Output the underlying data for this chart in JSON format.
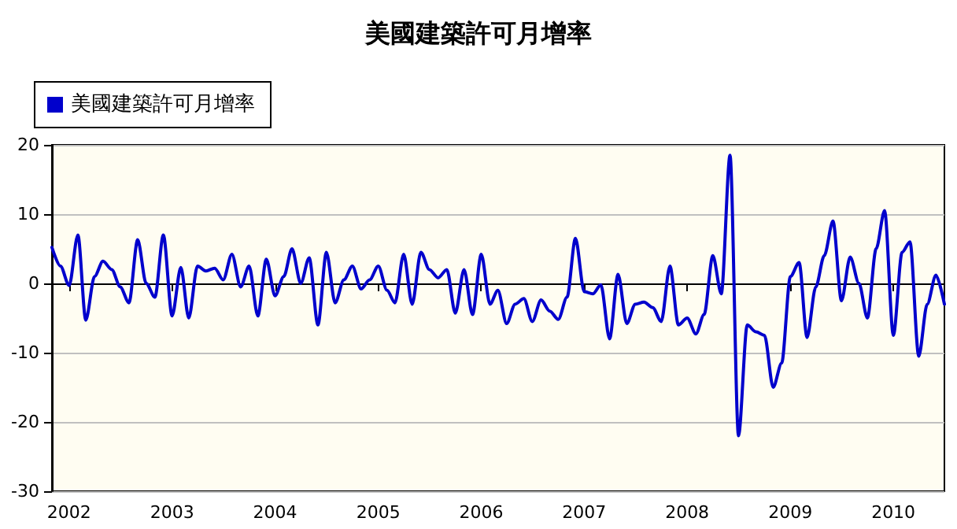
{
  "chart_data": {
    "type": "line",
    "title": "美國建築許可月增率",
    "x": [
      "2001-11",
      "2001-12",
      "2002-01",
      "2002-02",
      "2002-03",
      "2002-04",
      "2002-05",
      "2002-06",
      "2002-07",
      "2002-08",
      "2002-09",
      "2002-10",
      "2002-11",
      "2002-12",
      "2003-01",
      "2003-02",
      "2003-03",
      "2003-04",
      "2003-05",
      "2003-06",
      "2003-07",
      "2003-08",
      "2003-09",
      "2003-10",
      "2003-11",
      "2003-12",
      "2004-01",
      "2004-02",
      "2004-03",
      "2004-04",
      "2004-05",
      "2004-06",
      "2004-07",
      "2004-08",
      "2004-09",
      "2004-10",
      "2004-11",
      "2004-12",
      "2005-01",
      "2005-02",
      "2005-03",
      "2005-04",
      "2005-05",
      "2005-06",
      "2005-07",
      "2005-08",
      "2005-09",
      "2005-10",
      "2005-11",
      "2005-12",
      "2006-01",
      "2006-02",
      "2006-03",
      "2006-04",
      "2006-05",
      "2006-06",
      "2006-07",
      "2006-08",
      "2006-09",
      "2006-10",
      "2006-11",
      "2006-12",
      "2007-01",
      "2007-02",
      "2007-03",
      "2007-04",
      "2007-05",
      "2007-06",
      "2007-07",
      "2007-08",
      "2007-09",
      "2007-10",
      "2007-11",
      "2007-12",
      "2008-01",
      "2008-02",
      "2008-03",
      "2008-04",
      "2008-05",
      "2008-06",
      "2008-07",
      "2008-08",
      "2008-09",
      "2008-10",
      "2008-11",
      "2008-12",
      "2009-01",
      "2009-02",
      "2009-03",
      "2009-04",
      "2009-05",
      "2009-06",
      "2009-07",
      "2009-08",
      "2009-09",
      "2009-10",
      "2009-11",
      "2009-12",
      "2010-01",
      "2010-02",
      "2010-03",
      "2010-04",
      "2010-05",
      "2010-06",
      "2010-07"
    ],
    "series": [
      {
        "name": "美國建築許可月增率",
        "color": "#0000cc",
        "values": [
          5.2,
          2.5,
          -0.3,
          7,
          -5.3,
          1,
          3.2,
          2,
          -0.5,
          -2.8,
          6.3,
          0,
          -2,
          7,
          -4.7,
          2.3,
          -5,
          2.5,
          1.8,
          2.2,
          0.5,
          4.2,
          -0.5,
          2.5,
          -4.7,
          3.5,
          -1.8,
          1,
          5,
          0,
          3.7,
          -6,
          4.5,
          -2.8,
          0.5,
          2.5,
          -0.8,
          0.5,
          2.5,
          -1,
          -2.8,
          4.2,
          -3,
          4.5,
          2,
          0.8,
          2,
          -4.3,
          2,
          -4.5,
          4.2,
          -3,
          -1,
          -5.8,
          -3,
          -2.2,
          -5.5,
          -2.4,
          -4,
          -5.2,
          -2,
          6.5,
          -1.2,
          -1.5,
          -0.2,
          -8,
          1.3,
          -5.8,
          -3,
          -2.7,
          -3.5,
          -5.5,
          2.5,
          -6,
          -5,
          -7.3,
          -4.5,
          4,
          -1.5,
          18.5,
          -22,
          -6,
          -7,
          -7.5,
          -15,
          -11.5,
          1,
          3,
          -7.8,
          -0.5,
          4,
          9,
          -2.5,
          3.8,
          0,
          -5,
          5,
          10.5,
          -7.5,
          4.5,
          6,
          -10.5,
          -3,
          1.2,
          -3
        ]
      }
    ],
    "xlim": [
      "2001-11",
      "2010-07"
    ],
    "xticks": [
      "2002",
      "2003",
      "2004",
      "2005",
      "2006",
      "2007",
      "2008",
      "2009",
      "2010"
    ],
    "ylim": [
      -30,
      20
    ],
    "yticks": [
      -30,
      -20,
      -10,
      0,
      10,
      20
    ],
    "grid": "y",
    "legend": "top left",
    "marker": "none",
    "line_style": "solid"
  }
}
